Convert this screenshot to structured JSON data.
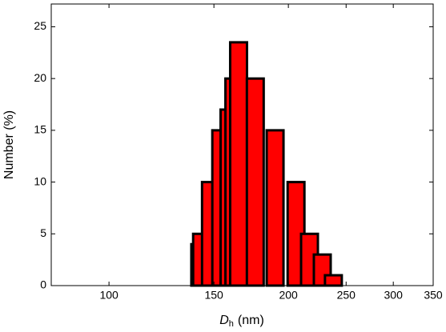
{
  "chart_data": {
    "type": "bar",
    "xlabel": [
      "D",
      "h",
      "(nm)"
    ],
    "ylabel": "Number (%)",
    "x": [
      142,
      143,
      148,
      154,
      159,
      162,
      165,
      176,
      190,
      206,
      217,
      228,
      238
    ],
    "values": [
      4,
      5,
      10,
      15,
      17,
      20,
      23.5,
      20,
      15,
      10,
      5,
      3,
      1
    ],
    "color": "#ff0000",
    "edge_color": "#000000",
    "xscale": "log",
    "xlim": [
      80,
      350
    ],
    "xticks": [
      100,
      150,
      200,
      250,
      300,
      350
    ],
    "ylim": [
      0,
      27.2
    ],
    "yticks": [
      0,
      5,
      10,
      15,
      20,
      25
    ]
  }
}
